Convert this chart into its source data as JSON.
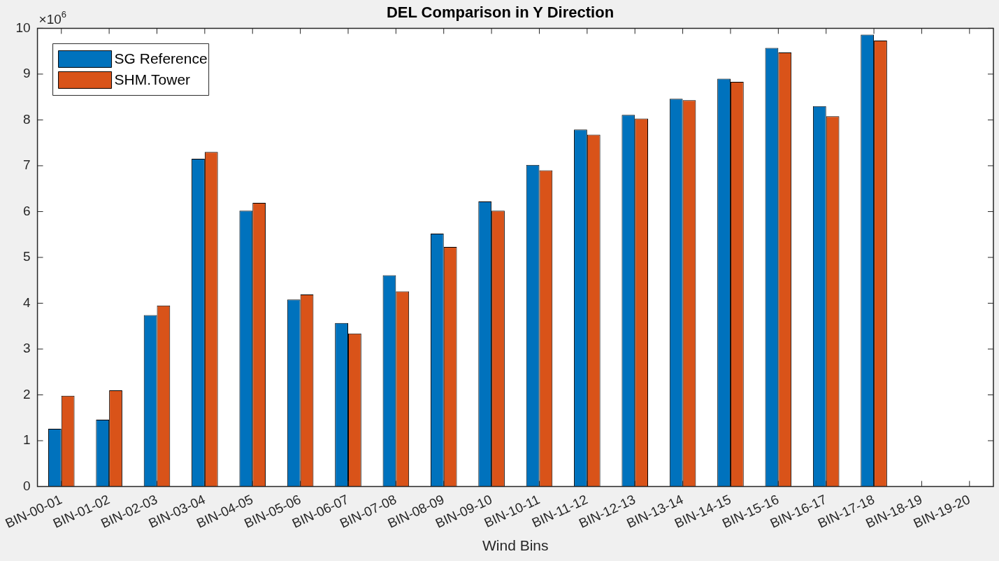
{
  "chart_data": {
    "type": "bar",
    "title": "DEL Comparison in Y Direction",
    "xlabel": "Wind Bins",
    "categories": [
      "BIN-00-01",
      "BIN-01-02",
      "BIN-02-03",
      "BIN-03-04",
      "BIN-04-05",
      "BIN-05-06",
      "BIN-06-07",
      "BIN-07-08",
      "BIN-08-09",
      "BIN-09-10",
      "BIN-10-11",
      "BIN-11-12",
      "BIN-12-13",
      "BIN-13-14",
      "BIN-14-15",
      "BIN-15-16",
      "BIN-16-17",
      "BIN-17-18",
      "BIN-18-19",
      "BIN-19-20"
    ],
    "series": [
      {
        "name": "SG Reference",
        "color": "#0072bd",
        "values": [
          1.26,
          1.46,
          3.74,
          7.15,
          6.02,
          4.08,
          3.57,
          4.61,
          5.52,
          6.22,
          7.02,
          7.79,
          8.11,
          8.46,
          8.9,
          9.57,
          8.3,
          9.86,
          null,
          null
        ]
      },
      {
        "name": "SHM.Tower",
        "color": "#d95319",
        "values": [
          1.98,
          2.1,
          3.95,
          7.3,
          6.19,
          4.19,
          3.34,
          4.26,
          5.23,
          6.02,
          6.9,
          7.68,
          8.03,
          8.43,
          8.83,
          9.47,
          8.08,
          9.73,
          null,
          null
        ]
      }
    ],
    "ylim": [
      0,
      10
    ],
    "yticks": [
      0,
      1,
      2,
      3,
      4,
      5,
      6,
      7,
      8,
      9,
      10
    ],
    "annotations": [
      "×10$^{6}$"
    ],
    "grid": false,
    "legend": "top left"
  }
}
